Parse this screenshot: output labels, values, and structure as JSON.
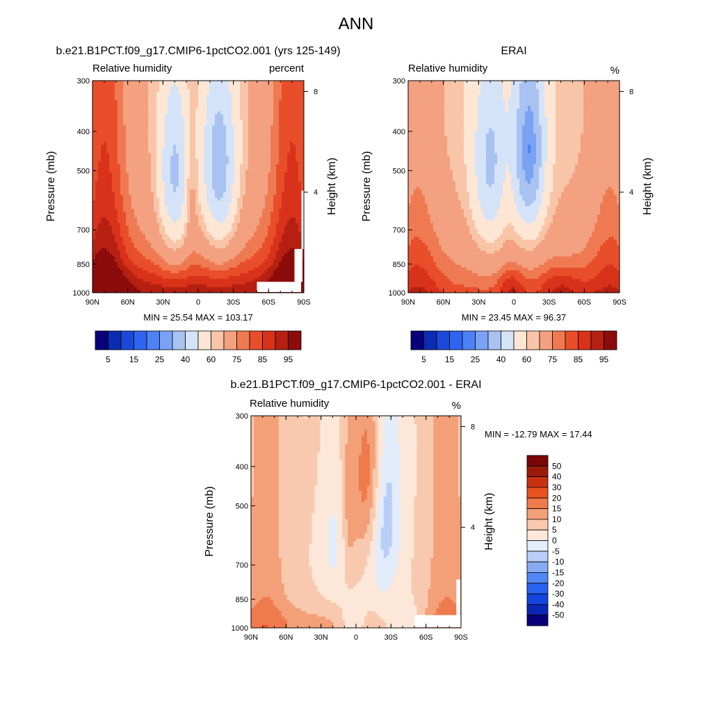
{
  "figure_title": "ANN",
  "colors": {
    "rh_levels": [
      "#08007a",
      "#0a2cb0",
      "#1a48d8",
      "#2f64f0",
      "#4c82f6",
      "#7aa2f4",
      "#a8c2f2",
      "#d4e3f8",
      "#fde6d4",
      "#f8c5a8",
      "#f3a180",
      "#ef7a52",
      "#e84e2a",
      "#d9321a",
      "#b52012",
      "#8c0b0b"
    ],
    "diff_levels": [
      "#08007a",
      "#0a26b4",
      "#1444dc",
      "#2a62f2",
      "#5288f6",
      "#86aaf4",
      "#b8cef6",
      "#e2ecfb",
      "#fce7d8",
      "#f8c9ae",
      "#f3a078",
      "#ef7a4c",
      "#e9521f",
      "#c83212",
      "#9a1a0a",
      "#7a0606"
    ]
  },
  "chart_data": [
    {
      "type": "heatmap",
      "title": "b.e21.B1PCT.f09_g17.CMIP6-1pctCO2.001 (yrs 125-149)",
      "left_label": "Relative humidity",
      "right_label": "percent",
      "ylabel": "Pressure (mb)",
      "ylabel_right": "Height (km)",
      "x_ticks": [
        "90N",
        "60N",
        "30N",
        "0",
        "30S",
        "60S",
        "90S"
      ],
      "y_ticks": [
        "300",
        "400",
        "500",
        "700",
        "850",
        "1000"
      ],
      "y_right_ticks": [
        "8",
        "4"
      ],
      "stats": "MIN =  25.54  MAX = 103.17",
      "colorbar_labels": [
        "5",
        "15",
        "25",
        "40",
        "60",
        "75",
        "85",
        "95"
      ],
      "xlim": [
        90,
        -90
      ],
      "ylim": [
        1000,
        300
      ],
      "y_scale": "log",
      "field": "rh_model"
    },
    {
      "type": "heatmap",
      "title": "ERAI",
      "left_label": "Relative humidity",
      "right_label": "%",
      "ylabel": "Pressure (mb)",
      "ylabel_right": "Height (km)",
      "x_ticks": [
        "90N",
        "60N",
        "30N",
        "0",
        "30S",
        "60S",
        "90S"
      ],
      "y_ticks": [
        "300",
        "400",
        "500",
        "700",
        "850",
        "1000"
      ],
      "y_right_ticks": [
        "8",
        "4"
      ],
      "stats": "MIN =  23.45  MAX =  96.37",
      "colorbar_labels": [
        "5",
        "15",
        "25",
        "40",
        "60",
        "75",
        "85",
        "95"
      ],
      "xlim": [
        90,
        -90
      ],
      "ylim": [
        1000,
        300
      ],
      "y_scale": "log",
      "field": "rh_obs"
    },
    {
      "type": "heatmap",
      "title": "b.e21.B1PCT.f09_g17.CMIP6-1pctCO2.001 - ERAI",
      "left_label": "Relative humidity",
      "right_label": "%",
      "ylabel": "Pressure (mb)",
      "ylabel_right": "Height (km)",
      "x_ticks": [
        "90N",
        "60N",
        "30N",
        "0",
        "30S",
        "60S",
        "90S"
      ],
      "y_ticks": [
        "300",
        "400",
        "500",
        "700",
        "850",
        "1000"
      ],
      "y_right_ticks": [
        "8",
        "4"
      ],
      "stats": "MIN = -12.79  MAX =  17.44",
      "colorbar_labels": [
        "50",
        "40",
        "30",
        "20",
        "15",
        "10",
        "5",
        "0",
        "-5",
        "-10",
        "-15",
        "-20",
        "-30",
        "-40",
        "-50"
      ],
      "xlim": [
        90,
        -90
      ],
      "ylim": [
        1000,
        300
      ],
      "y_scale": "log",
      "field": "rh_diff"
    }
  ]
}
